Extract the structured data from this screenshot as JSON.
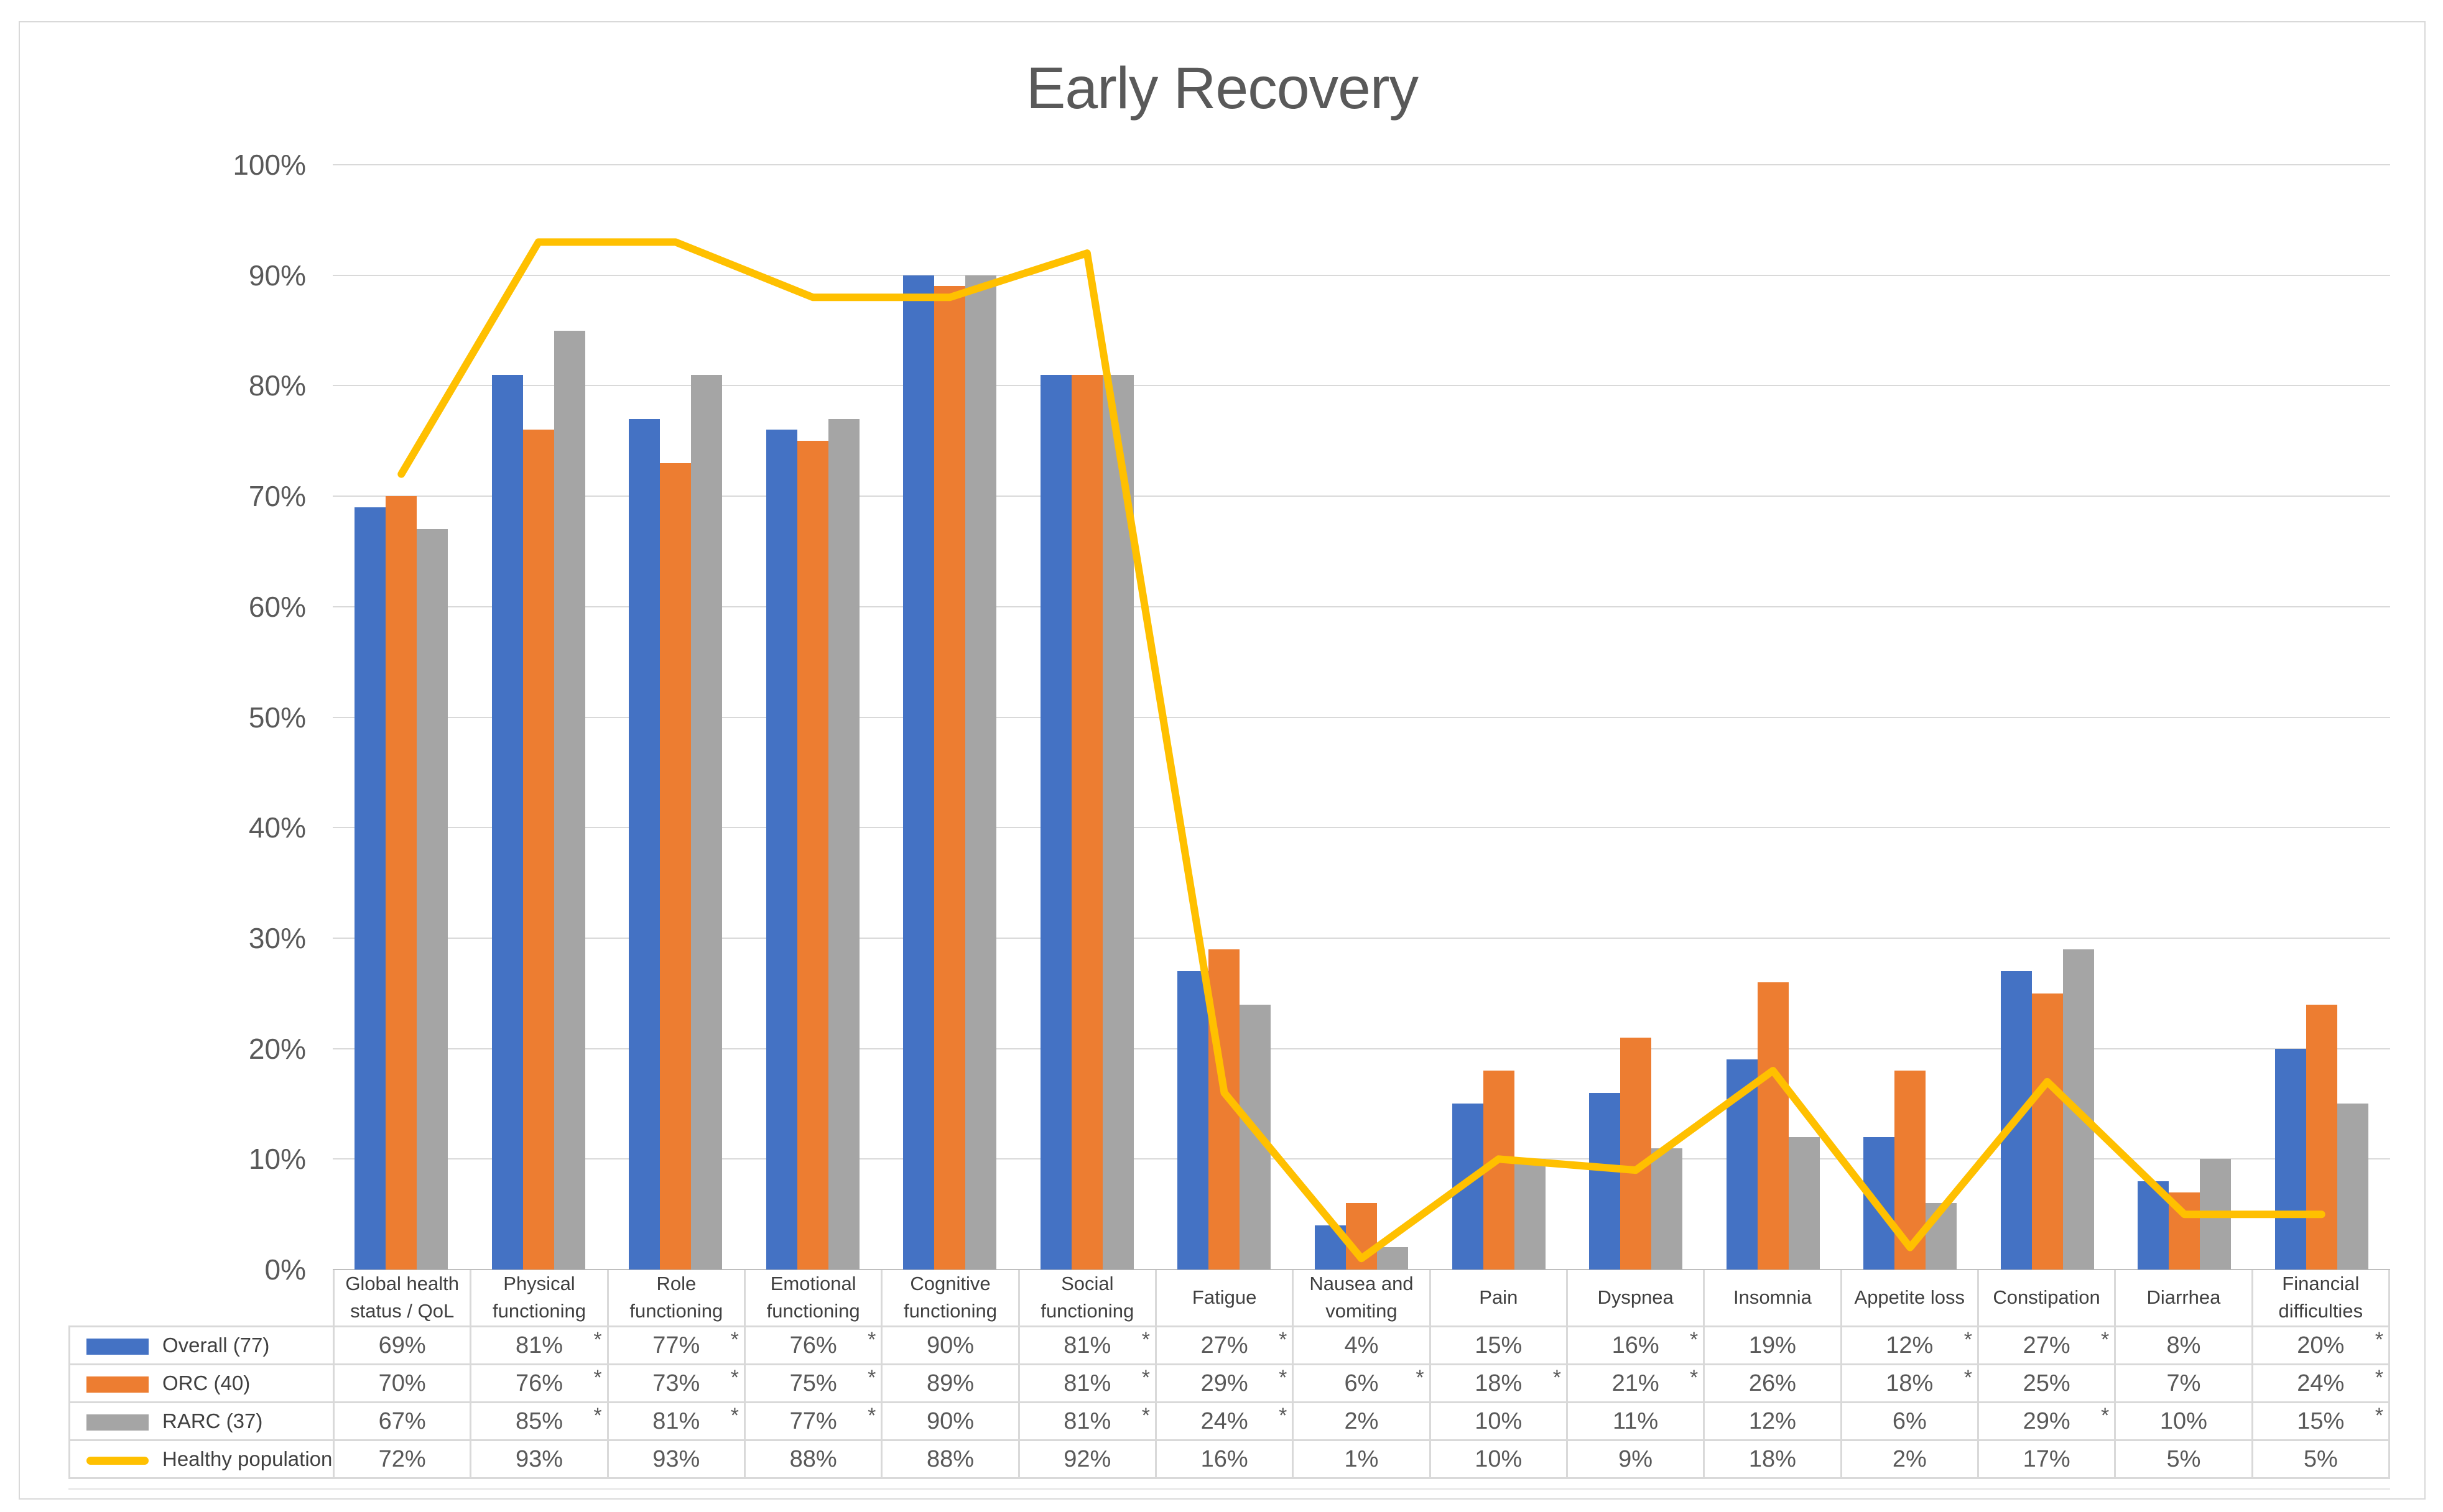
{
  "chart_data": {
    "type": "bar",
    "title": "Early Recovery",
    "value_suffix": "%",
    "significance_marker": "*",
    "legend_position": "table-left",
    "y_axis": {
      "min": 0,
      "max": 100,
      "grid": true,
      "ticks": [
        "0%",
        "10%",
        "20%",
        "30%",
        "40%",
        "50%",
        "60%",
        "70%",
        "80%",
        "90%",
        "100%"
      ]
    },
    "categories": [
      "Global health status / QoL",
      "Physical functioning",
      "Role functioning",
      "Emotional functioning",
      "Cognitive functioning",
      "Social functioning",
      "Fatigue",
      "Nausea and vomiting",
      "Pain",
      "Dyspnea",
      "Insomnia",
      "Appetite loss",
      "Constipation",
      "Diarrhea",
      "Financial difficulties"
    ],
    "series": [
      {
        "name": "Overall (77)",
        "render": "bar",
        "color": "#4472C4",
        "values": [
          69,
          81,
          77,
          76,
          90,
          81,
          27,
          4,
          15,
          16,
          19,
          12,
          27,
          8,
          20
        ],
        "significant": [
          false,
          true,
          true,
          true,
          false,
          true,
          true,
          false,
          false,
          true,
          false,
          true,
          true,
          false,
          true
        ]
      },
      {
        "name": "ORC (40)",
        "render": "bar",
        "color": "#ED7D31",
        "values": [
          70,
          76,
          73,
          75,
          89,
          81,
          29,
          6,
          18,
          21,
          26,
          18,
          25,
          7,
          24
        ],
        "significant": [
          false,
          true,
          true,
          true,
          false,
          true,
          true,
          true,
          true,
          true,
          false,
          true,
          false,
          false,
          true
        ]
      },
      {
        "name": "RARC (37)",
        "render": "bar",
        "color": "#A5A5A5",
        "values": [
          67,
          85,
          81,
          77,
          90,
          81,
          24,
          2,
          10,
          11,
          12,
          6,
          29,
          10,
          15
        ],
        "significant": [
          false,
          true,
          true,
          true,
          false,
          true,
          true,
          false,
          false,
          false,
          false,
          false,
          true,
          false,
          true
        ]
      },
      {
        "name": "Healthy population",
        "render": "line",
        "color": "#FFC000",
        "values": [
          72,
          93,
          93,
          88,
          88,
          92,
          16,
          1,
          10,
          9,
          18,
          2,
          17,
          5,
          5
        ],
        "significant": [
          false,
          false,
          false,
          false,
          false,
          false,
          false,
          false,
          false,
          false,
          false,
          false,
          false,
          false,
          false
        ]
      }
    ]
  },
  "colors": {
    "title_text": "#595959",
    "axis_text": "#595959",
    "table_text": "#404040",
    "gridline": "#D9D9D9",
    "axis_line": "#BFBFBF",
    "frame_border": "#D9D9D9"
  }
}
